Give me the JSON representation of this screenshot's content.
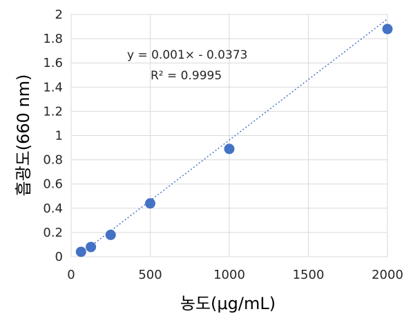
{
  "chart_data": {
    "type": "scatter",
    "title": "",
    "xlabel": "농도(μg/mL)",
    "ylabel": "흡광도(660 nm)",
    "xlim": [
      0,
      2000
    ],
    "ylim": [
      0,
      2
    ],
    "x_ticks": [
      "0",
      "500",
      "1000",
      "1500",
      "2000"
    ],
    "y_ticks": [
      "0",
      "0.2",
      "0.4",
      "0.6",
      "0.8",
      "1",
      "1.2",
      "1.4",
      "1.6",
      "1.8",
      "2"
    ],
    "grid": true,
    "legend": "none",
    "series": [
      {
        "x": [
          62.5,
          125,
          250,
          500,
          1000,
          2000
        ],
        "y": [
          0.04,
          0.08,
          0.18,
          0.44,
          0.89,
          1.88
        ],
        "marker_color": "#4472C4"
      }
    ],
    "trendline": {
      "type": "linear",
      "slope": 0.001,
      "intercept": -0.0373,
      "color": "#4472C4",
      "style": "dotted",
      "equation": "y = 0.001× - 0.0373",
      "r_squared": "R² = 0.9995"
    }
  }
}
